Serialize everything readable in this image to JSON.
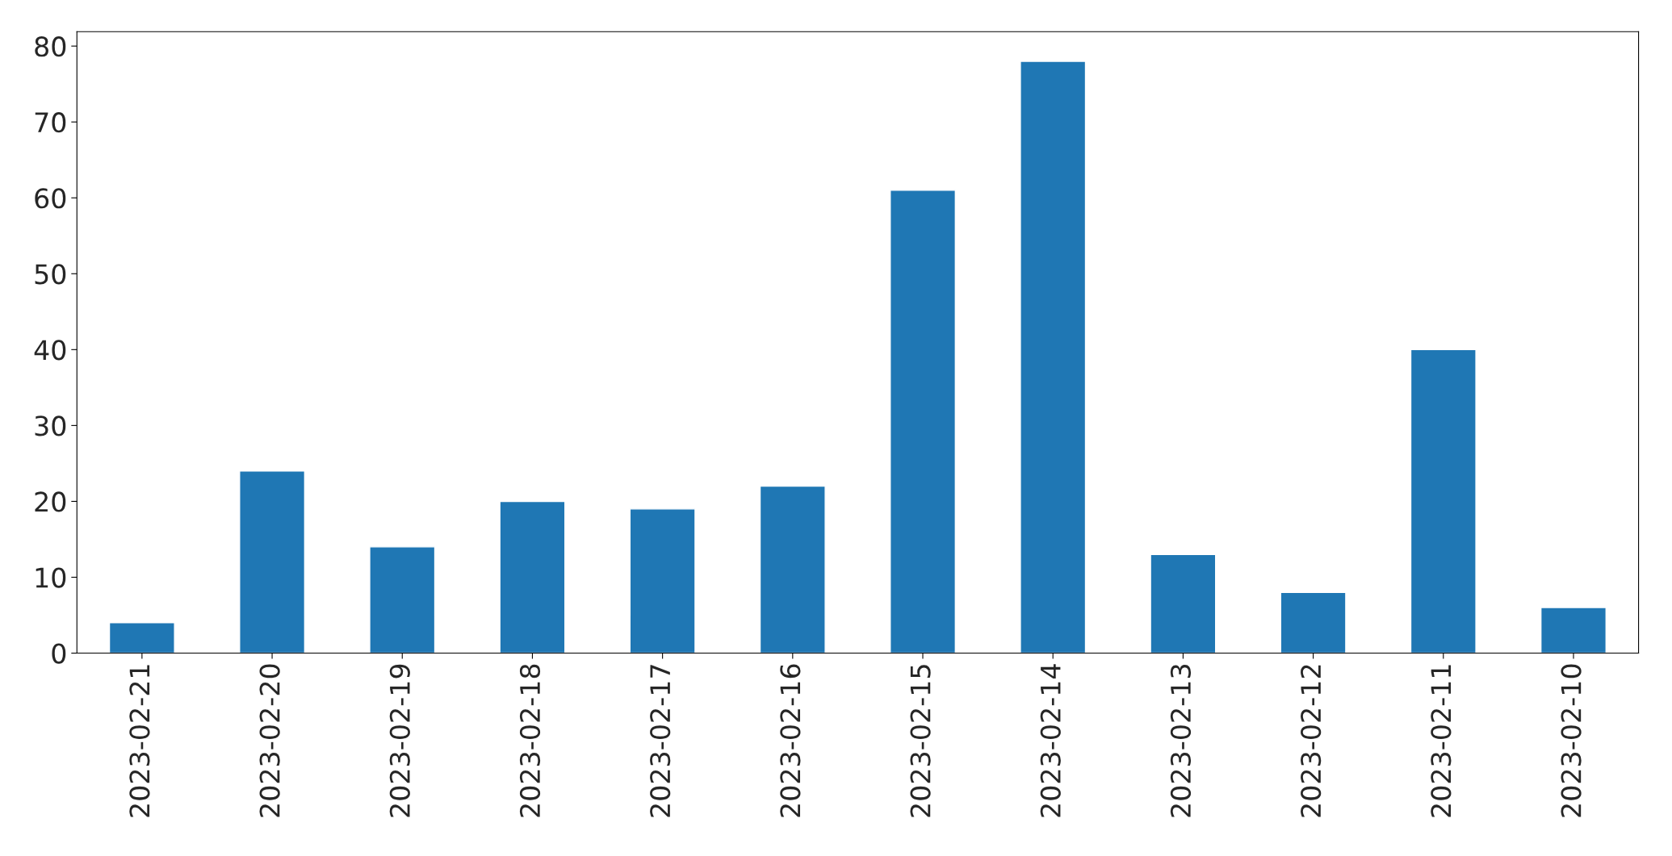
{
  "chart_data": {
    "type": "bar",
    "categories": [
      "2023-02-21",
      "2023-02-20",
      "2023-02-19",
      "2023-02-18",
      "2023-02-17",
      "2023-02-16",
      "2023-02-15",
      "2023-02-14",
      "2023-02-13",
      "2023-02-12",
      "2023-02-11",
      "2023-02-10"
    ],
    "values": [
      4,
      24,
      14,
      20,
      19,
      22,
      61,
      78,
      13,
      8,
      40,
      6
    ],
    "color": "#1f77b4",
    "ylim": [
      0,
      81.9
    ],
    "yticks": [
      0,
      10,
      20,
      30,
      40,
      50,
      60,
      70,
      80
    ],
    "grid": false
  }
}
